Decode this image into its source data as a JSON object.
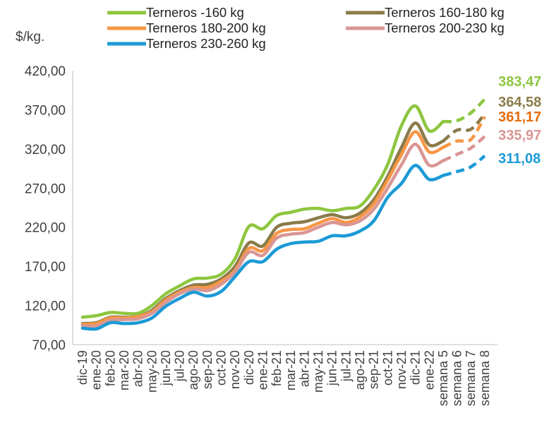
{
  "chart_data": {
    "type": "line",
    "ylabel": "$/kg.",
    "ylim": [
      70,
      420
    ],
    "yticks": [
      "70,00",
      "120,00",
      "170,00",
      "220,00",
      "270,00",
      "320,00",
      "370,00",
      "420,00"
    ],
    "grid": false,
    "legend_position": "top",
    "categories": [
      "dic-19",
      "ene-20",
      "feb-20",
      "mar-20",
      "abr-20",
      "may-20",
      "jun-20",
      "jul-20",
      "ago-20",
      "sep-20",
      "oct-20",
      "nov-20",
      "dic-20",
      "ene-21",
      "feb-21",
      "mar-21",
      "abr-21",
      "may-21",
      "jun-21",
      "jul-21",
      "ago-21",
      "sep-21",
      "oct-21",
      "nov-21",
      "dic-21",
      "ene-22",
      "semana 5",
      "semana 6",
      "semana 7",
      "semana 8"
    ],
    "dashed_from_index": 26,
    "series": [
      {
        "name": "Terneros -160 kg",
        "color": "#8DC63F",
        "end_label": "383,47",
        "values": [
          105,
          107,
          111,
          110,
          110,
          120,
          135,
          145,
          154,
          155,
          160,
          180,
          221,
          218,
          235,
          239,
          243,
          244,
          241,
          244,
          247,
          268,
          300,
          350,
          375,
          343,
          355,
          356,
          366,
          383.47
        ]
      },
      {
        "name": "Terneros 160-180 kg",
        "color": "#8B7B4A",
        "end_label": "364,58",
        "values": [
          97,
          98,
          105,
          105,
          106,
          114,
          129,
          139,
          146,
          147,
          154,
          170,
          200,
          196,
          220,
          225,
          227,
          232,
          236,
          232,
          238,
          255,
          285,
          322,
          353,
          325,
          330,
          344,
          345,
          364.58
        ]
      },
      {
        "name": "Terneros 180-200 kg",
        "color": "#F79646",
        "end_label": "361,17",
        "values": [
          96,
          97,
          104,
          104,
          106,
          112,
          127,
          137,
          143,
          143,
          151,
          165,
          193,
          190,
          212,
          217,
          218,
          225,
          231,
          226,
          233,
          250,
          280,
          313,
          342,
          316,
          322,
          330,
          332,
          361.17
        ]
      },
      {
        "name": "Terneros 200-230 kg",
        "color": "#D99694",
        "end_label": "335,97",
        "values": [
          94,
          94,
          101,
          102,
          103,
          110,
          124,
          135,
          141,
          139,
          147,
          163,
          188,
          184,
          206,
          211,
          213,
          220,
          226,
          223,
          228,
          243,
          270,
          300,
          326,
          299,
          305,
          313,
          321,
          335.97
        ]
      },
      {
        "name": "Terneros 230-260 kg",
        "color": "#1B9AD6",
        "end_label": "311,08",
        "values": [
          91,
          90,
          98,
          97,
          98,
          104,
          119,
          129,
          137,
          132,
          138,
          157,
          176,
          176,
          192,
          199,
          201,
          202,
          209,
          209,
          215,
          228,
          258,
          276,
          299,
          281,
          286,
          291,
          297,
          311.08
        ]
      }
    ]
  }
}
